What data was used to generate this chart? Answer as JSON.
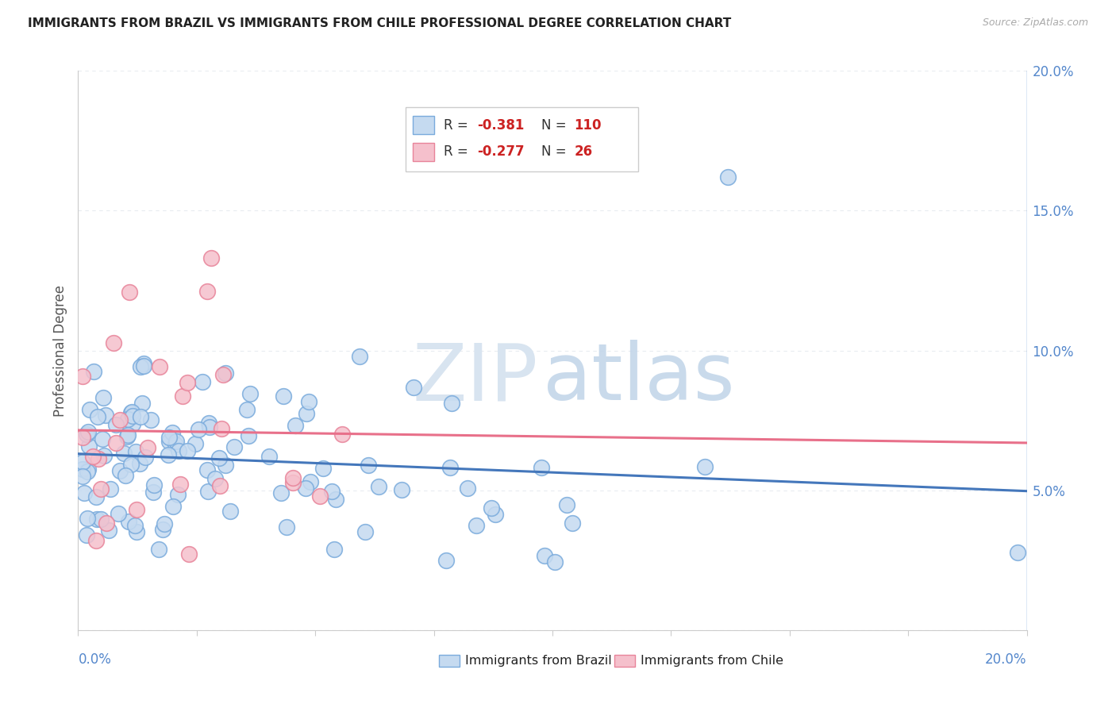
{
  "title": "IMMIGRANTS FROM BRAZIL VS IMMIGRANTS FROM CHILE PROFESSIONAL DEGREE CORRELATION CHART",
  "source": "Source: ZipAtlas.com",
  "ylabel": "Professional Degree",
  "brazil_color": "#c5daf0",
  "chile_color": "#f5c0cc",
  "brazil_edge_color": "#7aabdc",
  "chile_edge_color": "#e8849a",
  "brazil_line_color": "#4477bb",
  "chile_line_color": "#e8708a",
  "brazil_R": -0.381,
  "brazil_N": 110,
  "chile_R": -0.277,
  "chile_N": 26,
  "R_color": "#cc2222",
  "N_color": "#cc2222",
  "label_color": "#333333",
  "axis_label_color": "#5588cc",
  "xlim": [
    0.0,
    0.2
  ],
  "ylim": [
    0.0,
    0.2
  ],
  "yticks": [
    0.0,
    0.05,
    0.1,
    0.15,
    0.2
  ],
  "yticklabels": [
    "",
    "5.0%",
    "10.0%",
    "15.0%",
    "20.0%"
  ],
  "grid_color": "#e8ecf0",
  "watermark_zip_color": "#d8e4f0",
  "watermark_atlas_color": "#c0d4e8",
  "title_color": "#222222",
  "source_color": "#aaaaaa",
  "legend_border_color": "#cccccc",
  "spine_color": "#cccccc"
}
